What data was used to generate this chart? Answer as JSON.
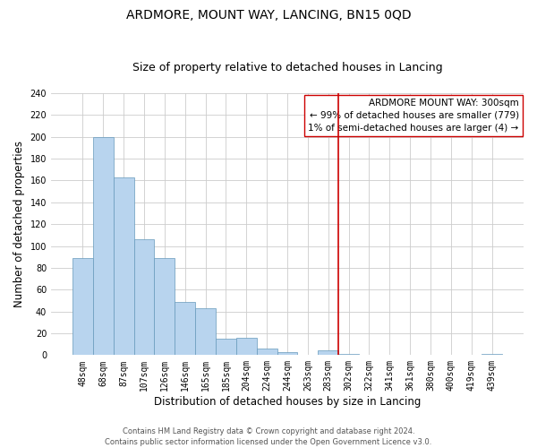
{
  "title": "ARDMORE, MOUNT WAY, LANCING, BN15 0QD",
  "subtitle": "Size of property relative to detached houses in Lancing",
  "xlabel": "Distribution of detached houses by size in Lancing",
  "ylabel": "Number of detached properties",
  "bar_labels": [
    "48sqm",
    "68sqm",
    "87sqm",
    "107sqm",
    "126sqm",
    "146sqm",
    "165sqm",
    "185sqm",
    "204sqm",
    "224sqm",
    "244sqm",
    "263sqm",
    "283sqm",
    "302sqm",
    "322sqm",
    "341sqm",
    "361sqm",
    "380sqm",
    "400sqm",
    "419sqm",
    "439sqm"
  ],
  "bar_values": [
    89,
    200,
    163,
    106,
    89,
    49,
    43,
    15,
    16,
    6,
    3,
    0,
    4,
    1,
    0,
    0,
    0,
    0,
    0,
    0,
    1
  ],
  "bar_color_left": "#b8d4ee",
  "bar_color_right": "#ddeeff",
  "bar_edge_color": "#6699bb",
  "vline_x_index": 13,
  "vline_color": "#cc0000",
  "annotation_title": "ARDMORE MOUNT WAY: 300sqm",
  "annotation_line1": "← 99% of detached houses are smaller (779)",
  "annotation_line2": "1% of semi-detached houses are larger (4) →",
  "ylim": [
    0,
    240
  ],
  "yticks": [
    0,
    20,
    40,
    60,
    80,
    100,
    120,
    140,
    160,
    180,
    200,
    220,
    240
  ],
  "footer_line1": "Contains HM Land Registry data © Crown copyright and database right 2024.",
  "footer_line2": "Contains public sector information licensed under the Open Government Licence v3.0.",
  "bg_color": "#ffffff",
  "grid_color": "#cccccc",
  "title_fontsize": 10,
  "subtitle_fontsize": 9,
  "tick_fontsize": 7,
  "ylabel_fontsize": 8.5,
  "xlabel_fontsize": 8.5,
  "annot_fontsize": 7.5,
  "footer_fontsize": 6
}
